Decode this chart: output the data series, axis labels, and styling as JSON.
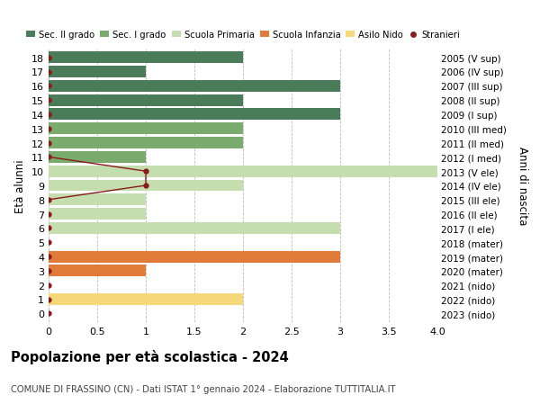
{
  "ages": [
    18,
    17,
    16,
    15,
    14,
    13,
    12,
    11,
    10,
    9,
    8,
    7,
    6,
    5,
    4,
    3,
    2,
    1,
    0
  ],
  "years": [
    "2005 (V sup)",
    "2006 (IV sup)",
    "2007 (III sup)",
    "2008 (II sup)",
    "2009 (I sup)",
    "2010 (III med)",
    "2011 (II med)",
    "2012 (I med)",
    "2013 (V ele)",
    "2014 (IV ele)",
    "2015 (III ele)",
    "2016 (II ele)",
    "2017 (I ele)",
    "2018 (mater)",
    "2019 (mater)",
    "2020 (mater)",
    "2021 (nido)",
    "2022 (nido)",
    "2023 (nido)"
  ],
  "bar_values": [
    2,
    1,
    3,
    2,
    3,
    2,
    2,
    1,
    4,
    2,
    1,
    1,
    3,
    0,
    3,
    1,
    0,
    2,
    0
  ],
  "bar_colors": [
    "#4a7c59",
    "#4a7c59",
    "#4a7c59",
    "#4a7c59",
    "#4a7c59",
    "#7aab6e",
    "#7aab6e",
    "#7aab6e",
    "#c5deb0",
    "#c5deb0",
    "#c5deb0",
    "#c5deb0",
    "#c5deb0",
    "#c5deb0",
    "#e07b39",
    "#e07b39",
    "#f5d87a",
    "#f5d87a",
    "#f5d87a"
  ],
  "stranieri_line_ages": [
    11,
    10,
    9,
    8
  ],
  "stranieri_line_vals": [
    0,
    1,
    1,
    0
  ],
  "stranieri_dot_ages": [
    18,
    17,
    16,
    15,
    14,
    13,
    12,
    11,
    8,
    7,
    6,
    5,
    4,
    3,
    2,
    1,
    0
  ],
  "stranieri_dot_vals": [
    0,
    0,
    0,
    0,
    0,
    0,
    0,
    0,
    0,
    0,
    0,
    0,
    0,
    0,
    0,
    0,
    0
  ],
  "legend_labels": [
    "Sec. II grado",
    "Sec. I grado",
    "Scuola Primaria",
    "Scuola Infanzia",
    "Asilo Nido",
    "Stranieri"
  ],
  "legend_colors": [
    "#4a7c59",
    "#7aab6e",
    "#c5deb0",
    "#e07b39",
    "#f5d87a",
    "#8b1a1a"
  ],
  "title": "Popolazione per eta scolastica - 2024",
  "title_accent": "Popolazione per età scolastica - 2024",
  "subtitle": "COMUNE DI FRASSINO (CN) - Dati ISTAT 1° gennaio 2024 - Elaborazione TUTTITALIA.IT",
  "ylabel_left": "Età alunni",
  "ylabel_right": "Anni di nascita",
  "xlim": [
    0,
    4.0
  ],
  "xticks": [
    0,
    0.5,
    1.0,
    1.5,
    2.0,
    2.5,
    3.0,
    3.5,
    4.0
  ],
  "xticklabels": [
    "0",
    "0.5",
    "1",
    "1.5",
    "2",
    "2.5",
    "3",
    "3.5",
    "4.0"
  ],
  "bg_color": "#ffffff",
  "grid_color": "#bbbbbb"
}
